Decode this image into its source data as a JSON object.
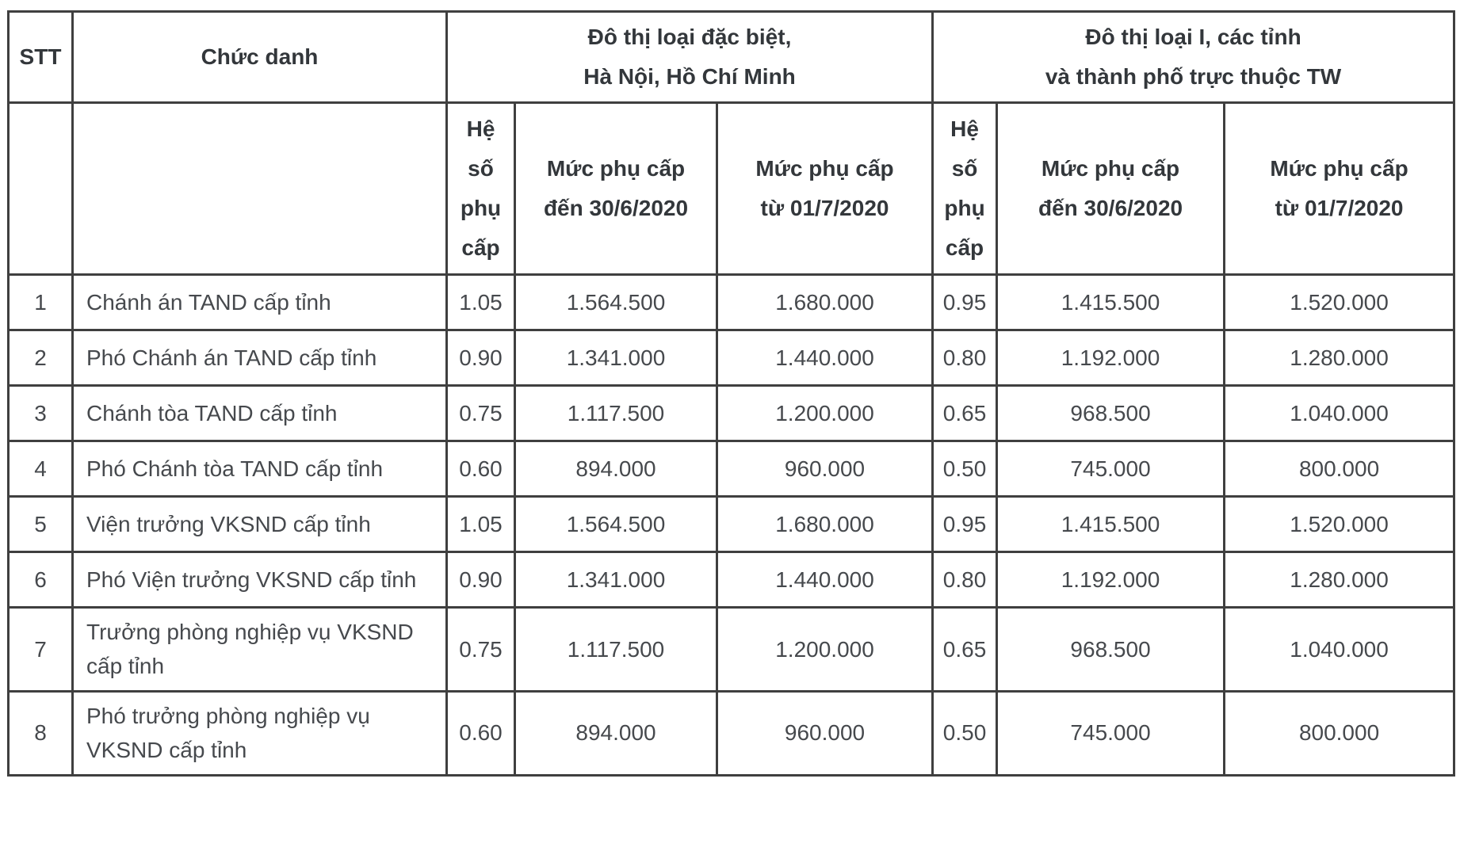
{
  "colors": {
    "border": "#3f3f3f",
    "header_text": "#33373b",
    "body_text": "#46494d",
    "background": "#ffffff"
  },
  "table": {
    "headers": {
      "stt": "STT",
      "chuc_danh": "Chức danh",
      "group1_line1": "Đô thị loại đặc biệt,",
      "group1_line2": "Hà Nội, Hồ Chí Minh",
      "group2_line1": "Đô thị loại I, các tỉnh",
      "group2_line2": "và thành phố trực thuộc TW",
      "he_so": "Hệ số phụ cấp",
      "muc_den_line1": "Mức phụ cấp",
      "muc_den_line2": "đến 30/6/2020",
      "muc_tu_line1": "Mức phụ cấp",
      "muc_tu_line2": "từ 01/7/2020"
    },
    "rows": [
      {
        "stt": "1",
        "chuc_danh": "Chánh án TAND cấp tỉnh",
        "he_so_1": "1.05",
        "muc_den_1": "1.564.500",
        "muc_tu_1": "1.680.000",
        "he_so_2": "0.95",
        "muc_den_2": "1.415.500",
        "muc_tu_2": "1.520.000"
      },
      {
        "stt": "2",
        "chuc_danh": "Phó Chánh án TAND cấp tỉnh",
        "he_so_1": "0.90",
        "muc_den_1": "1.341.000",
        "muc_tu_1": "1.440.000",
        "he_so_2": "0.80",
        "muc_den_2": "1.192.000",
        "muc_tu_2": "1.280.000"
      },
      {
        "stt": "3",
        "chuc_danh": "Chánh tòa TAND cấp tỉnh",
        "he_so_1": "0.75",
        "muc_den_1": "1.117.500",
        "muc_tu_1": "1.200.000",
        "he_so_2": "0.65",
        "muc_den_2": "968.500",
        "muc_tu_2": "1.040.000"
      },
      {
        "stt": "4",
        "chuc_danh": "Phó Chánh tòa TAND cấp tỉnh",
        "he_so_1": "0.60",
        "muc_den_1": "894.000",
        "muc_tu_1": "960.000",
        "he_so_2": "0.50",
        "muc_den_2": "745.000",
        "muc_tu_2": "800.000"
      },
      {
        "stt": "5",
        "chuc_danh": "Viện trưởng VKSND cấp tỉnh",
        "he_so_1": "1.05",
        "muc_den_1": "1.564.500",
        "muc_tu_1": "1.680.000",
        "he_so_2": "0.95",
        "muc_den_2": "1.415.500",
        "muc_tu_2": "1.520.000"
      },
      {
        "stt": "6",
        "chuc_danh": "Phó Viện trưởng VKSND cấp tỉnh",
        "he_so_1": "0.90",
        "muc_den_1": "1.341.000",
        "muc_tu_1": "1.440.000",
        "he_so_2": "0.80",
        "muc_den_2": "1.192.000",
        "muc_tu_2": "1.280.000"
      },
      {
        "stt": "7",
        "chuc_danh": "Trưởng phòng nghiệp vụ VKSND cấp tỉnh",
        "he_so_1": "0.75",
        "muc_den_1": "1.117.500",
        "muc_tu_1": "1.200.000",
        "he_so_2": "0.65",
        "muc_den_2": "968.500",
        "muc_tu_2": "1.040.000"
      },
      {
        "stt": "8",
        "chuc_danh": "Phó trưởng phòng nghiệp vụ VKSND cấp tỉnh",
        "he_so_1": "0.60",
        "muc_den_1": "894.000",
        "muc_tu_1": "960.000",
        "he_so_2": "0.50",
        "muc_den_2": "745.000",
        "muc_tu_2": "800.000"
      }
    ]
  }
}
